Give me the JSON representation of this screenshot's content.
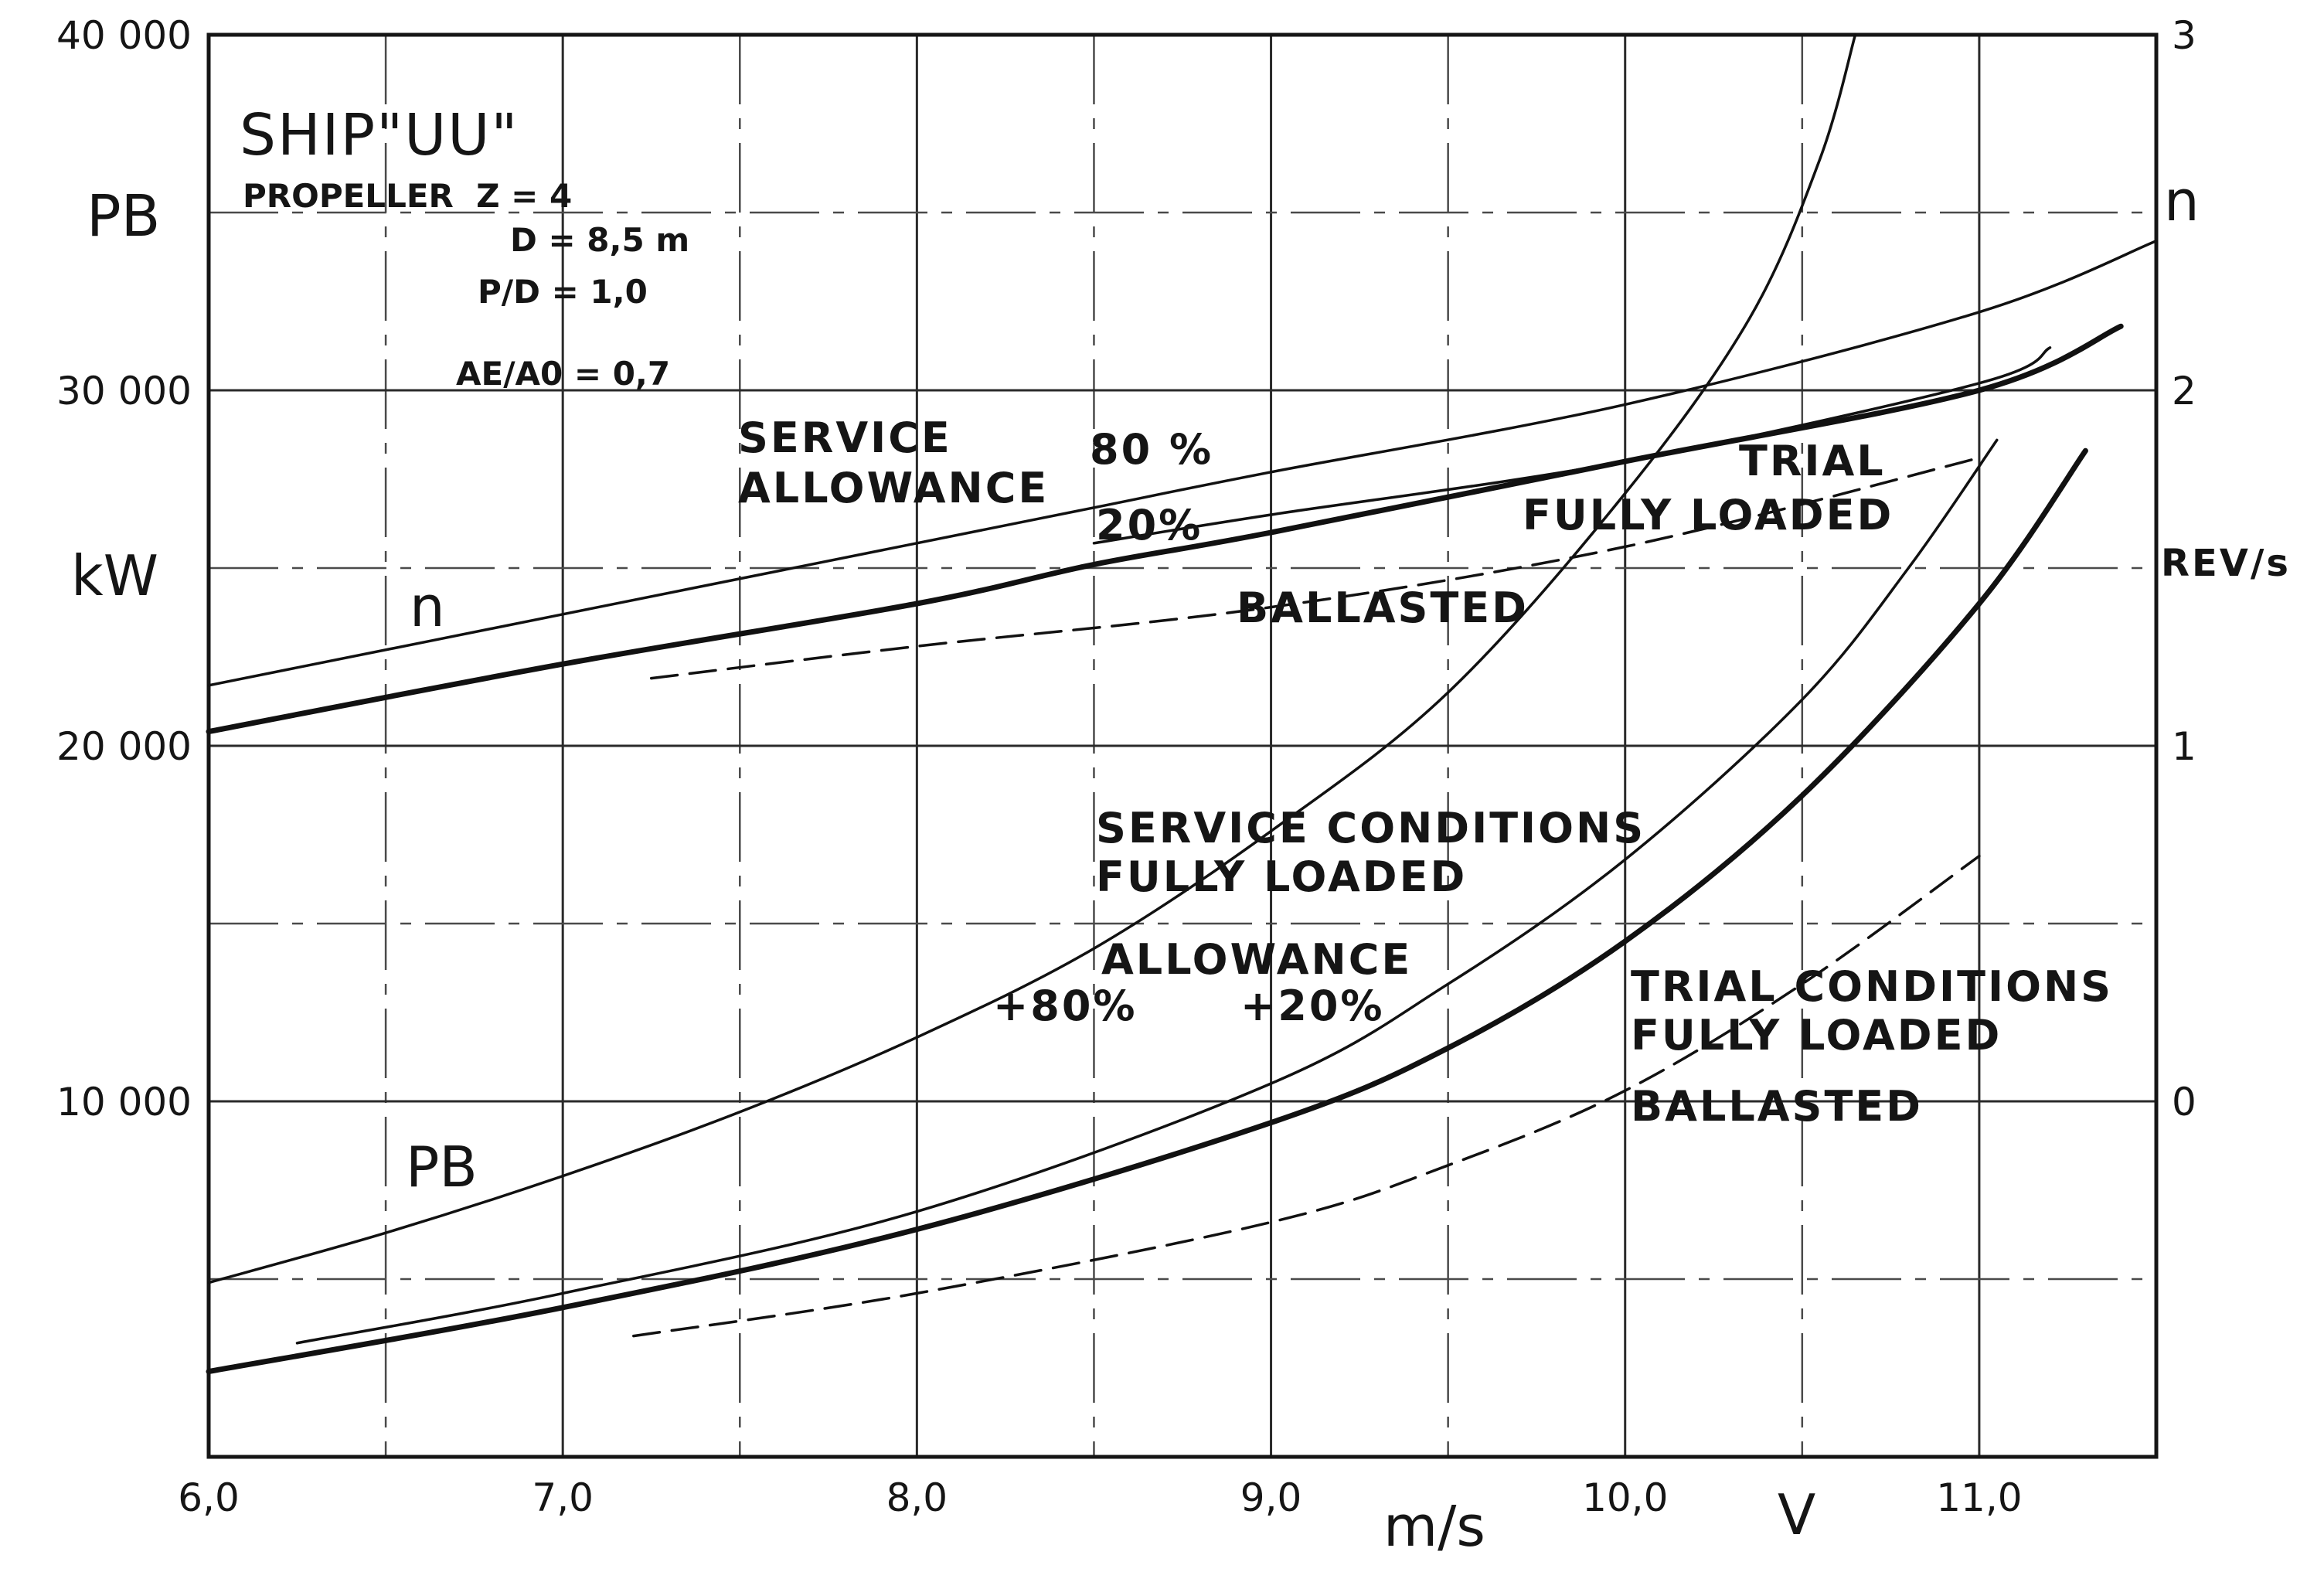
{
  "chart_data": {
    "type": "line",
    "title": "SHIP\"UU\"",
    "specs": [
      "PROPELLER  Z = 4",
      "D = 8,5 m",
      "P/D = 1,0",
      "AE/A0 = 0,7"
    ],
    "xlabel": "m/s",
    "xlabel_symbol": "V",
    "ylabel_left": "kW",
    "ylabel_left_symbol": "PB",
    "ylabel_right": "REV/s",
    "ylabel_right_symbol": "n",
    "xlim": [
      6.0,
      11.5
    ],
    "ylim_left": [
      0,
      40000
    ],
    "ylim_right": [
      -1,
      3
    ],
    "xticks": [
      6.0,
      7.0,
      8.0,
      9.0,
      10.0,
      11.0
    ],
    "xtick_labels": [
      "6,0",
      "7,0",
      "8,0",
      "9,0",
      "10,0",
      "11,0"
    ],
    "yticks_left": [
      10000,
      20000,
      30000,
      40000
    ],
    "ytick_labels_left": [
      "10 000",
      "20 000",
      "30 000",
      "40 000"
    ],
    "yticks_right": [
      0,
      1,
      2,
      3
    ],
    "ytick_labels_right": [
      "0",
      "1",
      "2",
      "3"
    ],
    "grid": true,
    "annotations": {
      "n_curve_label": "n",
      "pb_curve_label": "PB",
      "service_allowance": [
        "SERVICE",
        "ALLOWANCE"
      ],
      "pct_80_upper": "80 %",
      "pct_20_upper": "20%",
      "trial_upper": "TRIAL",
      "fully_loaded_upper": "FULLY LOADED",
      "ballasted_upper": "BALLASTED",
      "service_conditions": [
        "SERVICE CONDITIONS",
        "FULLY LOADED"
      ],
      "allowance": "ALLOWANCE",
      "pct_80_lower": "+80%",
      "pct_20_lower": "+20%",
      "trial_conditions": [
        "TRIAL CONDITIONS",
        "FULLY LOADED"
      ],
      "ballasted_lower": "BALLASTED"
    },
    "series": [
      {
        "axis": "right",
        "weight": "thin",
        "dash": false,
        "x": [
          6.0,
          7.0,
          8.0,
          8.5,
          9.0,
          10.0,
          11.0,
          11.5
        ],
        "y": [
          1.17,
          1.37,
          1.57,
          1.67,
          1.77,
          1.96,
          2.22,
          2.42
        ]
      },
      {
        "axis": "right",
        "weight": "thin",
        "dash": false,
        "x": [
          8.5,
          9.0,
          10.0,
          11.0,
          11.2
        ],
        "y": [
          1.57,
          1.65,
          1.8,
          2.02,
          2.12
        ]
      },
      {
        "axis": "right",
        "weight": "thick",
        "dash": false,
        "x": [
          6.0,
          7.0,
          8.0,
          8.5,
          9.0,
          10.0,
          11.0,
          11.4
        ],
        "y": [
          1.04,
          1.23,
          1.4,
          1.51,
          1.6,
          1.8,
          2.0,
          2.18
        ]
      },
      {
        "axis": "right",
        "weight": "thin",
        "dash": true,
        "x": [
          7.25,
          8.0,
          9.0,
          10.0,
          11.0
        ],
        "y": [
          1.19,
          1.28,
          1.39,
          1.56,
          1.81
        ]
      },
      {
        "axis": "left",
        "weight": "thin",
        "dash": false,
        "x": [
          6.0,
          6.5,
          7.0,
          7.5,
          8.0,
          8.5,
          9.0,
          9.5,
          10.0,
          10.35,
          10.55,
          10.65
        ],
        "y": [
          4900,
          6300,
          7900,
          9700,
          11800,
          14300,
          17600,
          21500,
          27100,
          32000,
          36500,
          40000
        ]
      },
      {
        "axis": "left",
        "weight": "thin",
        "dash": false,
        "x": [
          6.25,
          7.0,
          8.0,
          9.0,
          9.5,
          10.0,
          10.5,
          10.8,
          11.05
        ],
        "y": [
          3200,
          4600,
          6900,
          10500,
          13300,
          16800,
          21300,
          25000,
          28600
        ]
      },
      {
        "axis": "left",
        "weight": "thick",
        "dash": false,
        "x": [
          6.0,
          7.0,
          8.0,
          9.0,
          9.5,
          10.0,
          10.5,
          11.0,
          11.3
        ],
        "y": [
          2400,
          4200,
          6400,
          9400,
          11500,
          14500,
          18600,
          24000,
          28300
        ]
      },
      {
        "axis": "left",
        "weight": "thin",
        "dash": true,
        "x": [
          7.2,
          8.0,
          9.0,
          9.5,
          10.0,
          10.5,
          11.0
        ],
        "y": [
          3400,
          4600,
          6600,
          8200,
          10300,
          13300,
          16900
        ]
      }
    ]
  }
}
